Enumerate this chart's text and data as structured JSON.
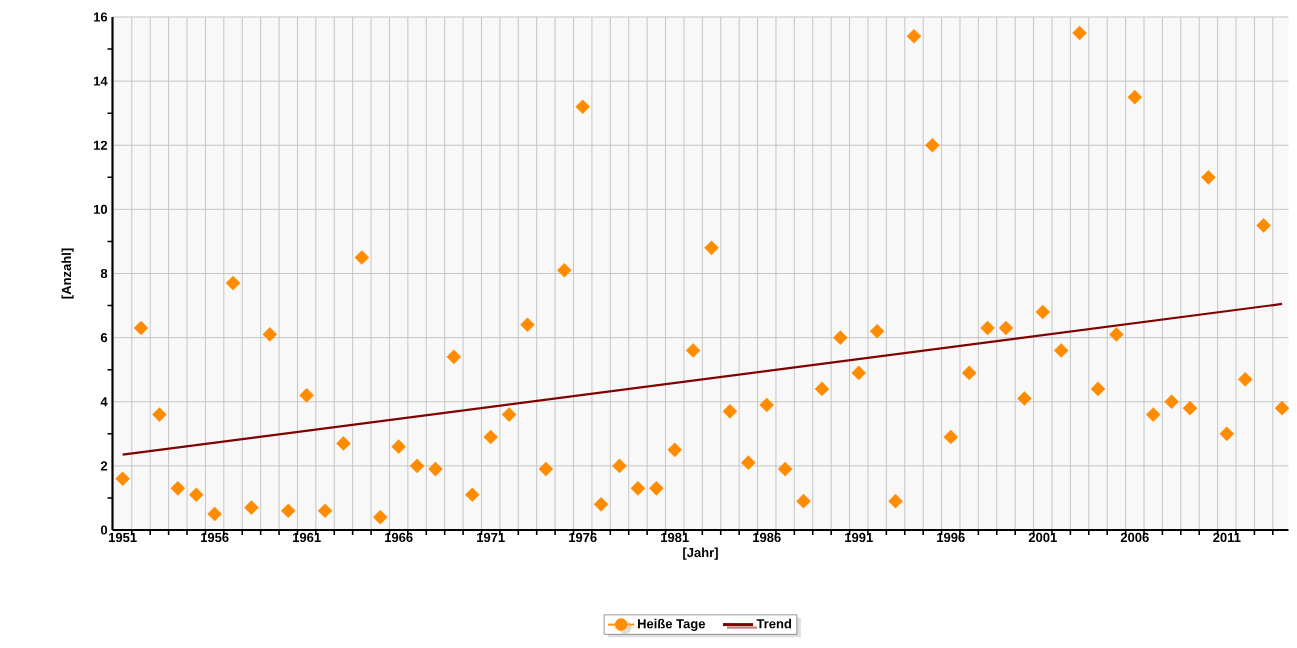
{
  "chart_data": {
    "type": "scatter",
    "xlabel": "[Jahr]",
    "ylabel": "[Anzahl]",
    "series": [
      {
        "name": "Heiße Tage",
        "marker": "diamond",
        "color": "#ff8c00",
        "x": [
          1951,
          1952,
          1953,
          1954,
          1955,
          1956,
          1957,
          1958,
          1959,
          1960,
          1961,
          1962,
          1963,
          1964,
          1965,
          1966,
          1967,
          1968,
          1969,
          1970,
          1971,
          1972,
          1973,
          1974,
          1975,
          1976,
          1977,
          1978,
          1979,
          1980,
          1981,
          1982,
          1983,
          1984,
          1985,
          1986,
          1987,
          1988,
          1989,
          1990,
          1991,
          1992,
          1993,
          1994,
          1995,
          1996,
          1997,
          1998,
          1999,
          2000,
          2001,
          2002,
          2003,
          2004,
          2005,
          2006,
          2007,
          2008,
          2009,
          2010,
          2011,
          2012,
          2013,
          2014
        ],
        "values": [
          1.6,
          6.3,
          3.6,
          1.3,
          1.1,
          0.5,
          7.7,
          0.7,
          6.1,
          0.6,
          4.2,
          0.6,
          2.7,
          8.5,
          0.4,
          2.6,
          2.0,
          1.9,
          5.4,
          1.1,
          2.9,
          3.6,
          6.4,
          1.9,
          8.1,
          13.2,
          0.8,
          2.0,
          1.3,
          1.3,
          2.5,
          5.6,
          8.8,
          3.7,
          2.1,
          3.9,
          1.9,
          0.9,
          4.4,
          6.0,
          4.9,
          6.2,
          0.9,
          15.4,
          12.0,
          2.9,
          4.9,
          6.3,
          6.3,
          4.1,
          6.8,
          5.6,
          15.5,
          4.4,
          6.1,
          13.5,
          3.6,
          4.0,
          3.8,
          11.0,
          3.0,
          4.7,
          9.5,
          3.8
        ]
      },
      {
        "name": "Trend",
        "type": "line",
        "color": "#800000",
        "x": [
          1951,
          2014
        ],
        "values": [
          2.35,
          7.05
        ]
      }
    ],
    "xlim": [
      1950.45,
      2014.35
    ],
    "ylim": [
      0,
      16
    ],
    "xticks": [
      1951,
      1956,
      1961,
      1966,
      1971,
      1976,
      1981,
      1986,
      1991,
      1996,
      2001,
      2006,
      2011,
      {
        "value": 1951.5,
        "label": null
      },
      {
        "value": 1952.5,
        "label": null
      },
      {
        "value": 1953.5,
        "label": null
      },
      {
        "value": 1954.5,
        "label": null
      },
      {
        "value": 1955.5,
        "label": null
      },
      {
        "value": 1956.5,
        "label": null
      },
      {
        "value": 1957.5,
        "label": null
      },
      {
        "value": 1958.5,
        "label": null
      },
      {
        "value": 1959.5,
        "label": null
      },
      {
        "value": 1960.5,
        "label": null
      },
      {
        "value": 1961.5,
        "label": null
      },
      {
        "value": 1962.5,
        "label": null
      },
      {
        "value": 1963.5,
        "label": null
      },
      {
        "value": 1964.5,
        "label": null
      },
      {
        "value": 1965.5,
        "label": null
      },
      {
        "value": 1966.5,
        "label": null
      },
      {
        "value": 1967.5,
        "label": null
      },
      {
        "value": 1968.5,
        "label": null
      },
      {
        "value": 1969.5,
        "label": null
      },
      {
        "value": 1970.5,
        "label": null
      },
      {
        "value": 1971.5,
        "label": null
      },
      {
        "value": 1972.5,
        "label": null
      },
      {
        "value": 1973.5,
        "label": null
      },
      {
        "value": 1974.5,
        "label": null
      },
      {
        "value": 1975.5,
        "label": null
      },
      {
        "value": 1976.5,
        "label": null
      },
      {
        "value": 1977.5,
        "label": null
      },
      {
        "value": 1978.5,
        "label": null
      },
      {
        "value": 1979.5,
        "label": null
      },
      {
        "value": 1980.5,
        "label": null
      },
      {
        "value": 1981.5,
        "label": null
      },
      {
        "value": 1982.5,
        "label": null
      },
      {
        "value": 1983.5,
        "label": null
      },
      {
        "value": 1984.5,
        "label": null
      },
      {
        "value": 1985.5,
        "label": null
      },
      {
        "value": 1986.5,
        "label": null
      },
      {
        "value": 1987.5,
        "label": null
      },
      {
        "value": 1988.5,
        "label": null
      },
      {
        "value": 1989.5,
        "label": null
      },
      {
        "value": 1990.5,
        "label": null
      },
      {
        "value": 1991.5,
        "label": null
      },
      {
        "value": 1992.5,
        "label": null
      },
      {
        "value": 1993.5,
        "label": null
      },
      {
        "value": 1994.5,
        "label": null
      },
      {
        "value": 1995.5,
        "label": null
      },
      {
        "value": 1996.5,
        "label": null
      },
      {
        "value": 1997.5,
        "label": null
      },
      {
        "value": 1998.5,
        "label": null
      },
      {
        "value": 1999.5,
        "label": null
      },
      {
        "value": 2000.5,
        "label": null
      },
      {
        "value": 2001.5,
        "label": null
      },
      {
        "value": 2002.5,
        "label": null
      },
      {
        "value": 2003.5,
        "label": null
      },
      {
        "value": 2004.5,
        "label": null
      },
      {
        "value": 2005.5,
        "label": null
      },
      {
        "value": 2006.5,
        "label": null
      },
      {
        "value": 2007.5,
        "label": null
      },
      {
        "value": 2008.5,
        "label": null
      },
      {
        "value": 2009.5,
        "label": null
      },
      {
        "value": 2010.5,
        "label": null
      },
      {
        "value": 2011.5,
        "label": null
      },
      {
        "value": 2012.5,
        "label": null
      },
      {
        "value": 2013.5,
        "label": null
      }
    ],
    "yticks": [
      0,
      2,
      4,
      6,
      8,
      10,
      12,
      14,
      16,
      {
        "value": 1,
        "label": null
      },
      {
        "value": 3,
        "label": null
      },
      {
        "value": 5,
        "label": null
      },
      {
        "value": 7,
        "label": null
      },
      {
        "value": 9,
        "label": null
      },
      {
        "value": 11,
        "label": null
      },
      {
        "value": 13,
        "label": null
      },
      {
        "value": 15,
        "label": null
      }
    ],
    "grid": true,
    "legend": "bottom",
    "line_style": "solid"
  }
}
